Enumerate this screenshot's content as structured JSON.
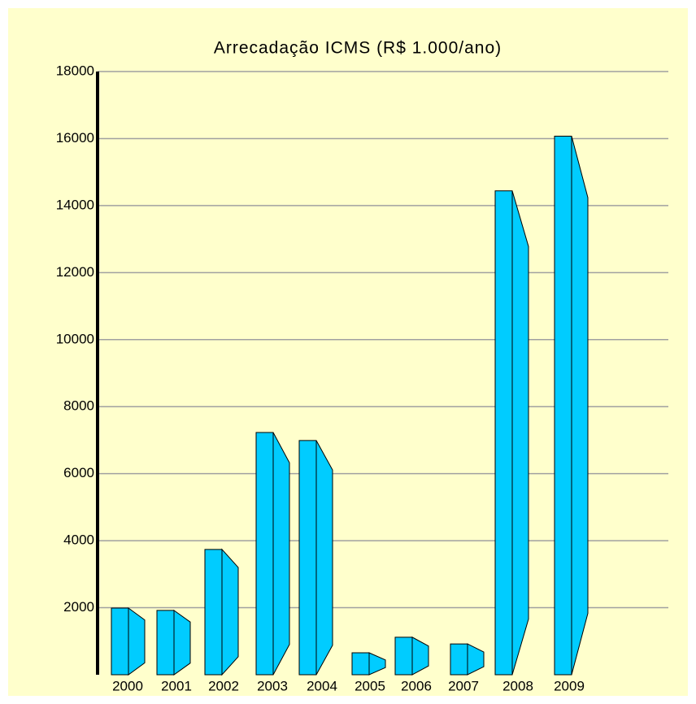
{
  "chart_data": {
    "type": "bar",
    "title": "Arrecadação ICMS (R$ 1.000/ano)",
    "categories": [
      "2000",
      "2001",
      "2002",
      "2003",
      "2004",
      "2005",
      "2006",
      "2007",
      "2008",
      "2009"
    ],
    "values": [
      1990,
      1920,
      3740,
      7230,
      6990,
      655,
      1120,
      920,
      14440,
      16070
    ],
    "color": "#00ccff",
    "ylim": [
      0,
      18000
    ],
    "yticks": [
      2000,
      4000,
      6000,
      8000,
      10000,
      12000,
      14000,
      16000,
      18000
    ],
    "grid": true
  }
}
